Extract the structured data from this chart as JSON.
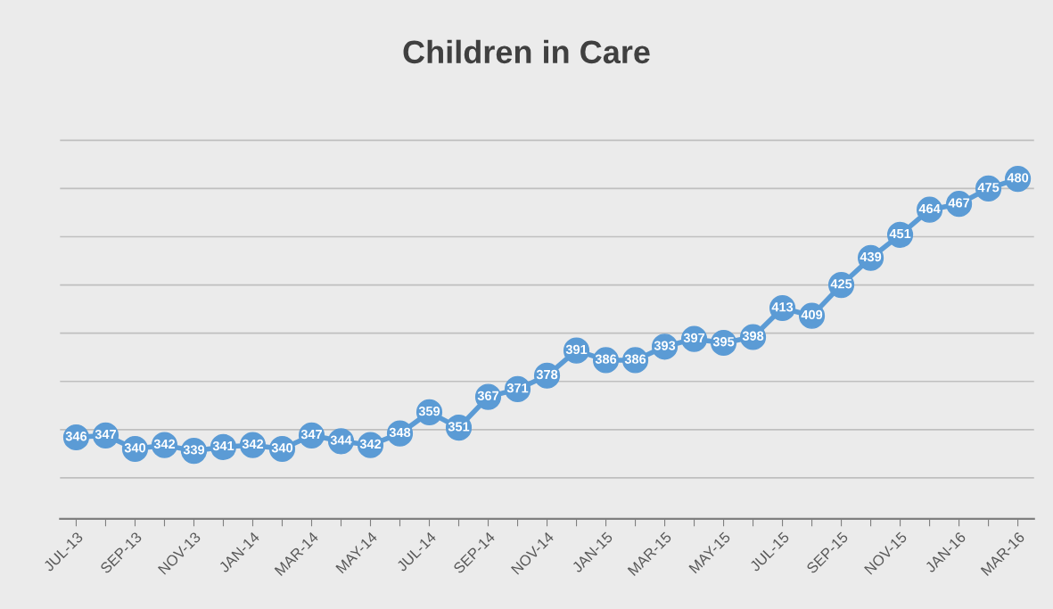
{
  "chart_data": {
    "type": "line",
    "title": "Children in Care",
    "categories": [
      "JUL-13",
      null,
      "SEP-13",
      null,
      "NOV-13",
      null,
      "JAN-14",
      null,
      "MAR-14",
      null,
      "MAY-14",
      null,
      "JUL-14",
      null,
      "SEP-14",
      null,
      "NOV-14",
      null,
      "JAN-15",
      null,
      "MAR-15",
      null,
      "MAY-15",
      null,
      "JUL-15",
      null,
      "SEP-15",
      null,
      "NOV-15",
      null,
      "JAN-16",
      null,
      "MAR-16"
    ],
    "series": [
      {
        "color": "#5b9bd5",
        "values": [
          346,
          347,
          340,
          342,
          339,
          341,
          342,
          340,
          347,
          344,
          342,
          348,
          359,
          351,
          367,
          371,
          378,
          391,
          386,
          386,
          393,
          397,
          395,
          398,
          413,
          409,
          425,
          439,
          451,
          464,
          467,
          475,
          480
        ]
      }
    ],
    "tick_labels": "x",
    "grid": "y",
    "marker": "circle",
    "line_style": "solid",
    "data_labels": true
  }
}
